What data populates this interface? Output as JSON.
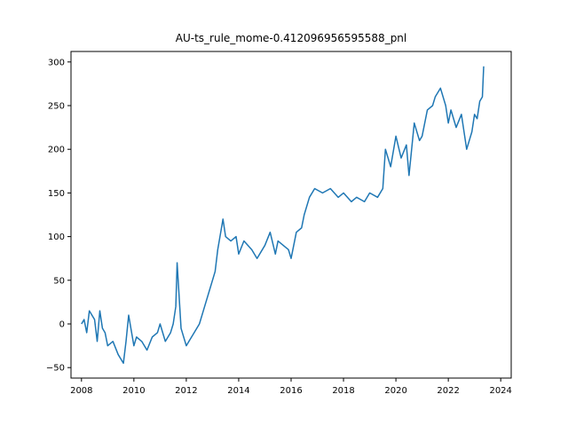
{
  "chart_data": {
    "type": "line",
    "title": "AU-ts_rule_mome-0.412096956595588_pnl",
    "xlabel": "",
    "ylabel": "",
    "xlim": [
      2007.6,
      2024.4
    ],
    "ylim": [
      -62,
      312
    ],
    "grid": false,
    "legend": "none",
    "x_ticks": [
      2008,
      2010,
      2012,
      2014,
      2016,
      2018,
      2020,
      2022,
      2024
    ],
    "x_tick_labels": [
      "2008",
      "2010",
      "2012",
      "2014",
      "2016",
      "2018",
      "2020",
      "2022",
      "2024"
    ],
    "y_ticks": [
      -50,
      0,
      50,
      100,
      150,
      200,
      250,
      300
    ],
    "y_tick_labels": [
      "−50",
      "0",
      "50",
      "100",
      "150",
      "200",
      "250",
      "300"
    ],
    "series": [
      {
        "color": "#1f77b4",
        "x": [
          2008.0,
          2008.1,
          2008.2,
          2008.3,
          2008.4,
          2008.5,
          2008.6,
          2008.7,
          2008.8,
          2008.9,
          2009.0,
          2009.2,
          2009.4,
          2009.6,
          2009.7,
          2009.8,
          2010.0,
          2010.1,
          2010.3,
          2010.5,
          2010.7,
          2010.9,
          2011.0,
          2011.2,
          2011.4,
          2011.5,
          2011.6,
          2011.65,
          2011.8,
          2012.0,
          2012.1,
          2012.3,
          2012.5,
          2012.7,
          2012.9,
          2013.0,
          2013.1,
          2013.2,
          2013.4,
          2013.5,
          2013.7,
          2013.9,
          2014.0,
          2014.2,
          2014.5,
          2014.7,
          2015.0,
          2015.2,
          2015.4,
          2015.5,
          2015.7,
          2015.9,
          2016.0,
          2016.2,
          2016.4,
          2016.5,
          2016.7,
          2016.9,
          2017.2,
          2017.5,
          2017.8,
          2018.0,
          2018.3,
          2018.5,
          2018.8,
          2019.0,
          2019.3,
          2019.5,
          2019.6,
          2019.8,
          2020.0,
          2020.2,
          2020.4,
          2020.5,
          2020.7,
          2020.9,
          2021.0,
          2021.2,
          2021.4,
          2021.5,
          2021.7,
          2021.9,
          2022.0,
          2022.1,
          2022.3,
          2022.5,
          2022.7,
          2022.9,
          2023.0,
          2023.1,
          2023.2,
          2023.3,
          2023.35
        ],
        "y": [
          0,
          5,
          -10,
          15,
          10,
          5,
          -20,
          15,
          -5,
          -10,
          -25,
          -20,
          -35,
          -45,
          -20,
          10,
          -25,
          -15,
          -20,
          -30,
          -15,
          -10,
          0,
          -20,
          -10,
          0,
          20,
          70,
          -5,
          -25,
          -20,
          -10,
          0,
          20,
          40,
          50,
          60,
          85,
          120,
          100,
          95,
          100,
          80,
          95,
          85,
          75,
          90,
          105,
          80,
          95,
          90,
          85,
          75,
          105,
          110,
          125,
          145,
          155,
          150,
          155,
          145,
          150,
          140,
          145,
          140,
          150,
          145,
          155,
          200,
          180,
          215,
          190,
          205,
          170,
          230,
          210,
          215,
          245,
          250,
          260,
          270,
          250,
          230,
          245,
          225,
          240,
          200,
          220,
          240,
          235,
          255,
          260,
          295
        ]
      }
    ]
  }
}
